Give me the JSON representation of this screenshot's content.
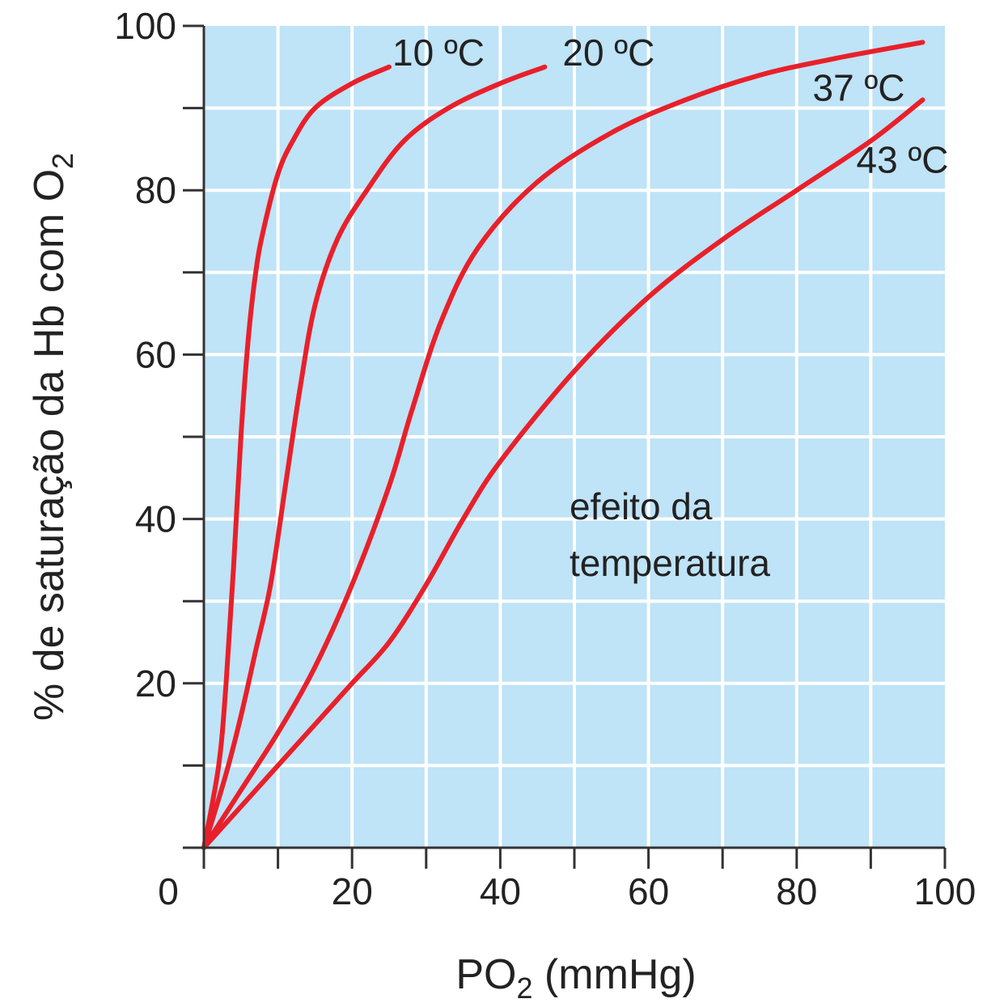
{
  "chart_data": {
    "type": "line",
    "title": "",
    "xlabel": {
      "main": "PO",
      "sub": "2",
      "rest": " (mmHg)"
    },
    "ylabel": {
      "main": "% de saturação da Hb com O",
      "sub": "2"
    },
    "xlim": [
      0,
      100
    ],
    "ylim": [
      0,
      100
    ],
    "x_tick_labels": [
      "0",
      "20",
      "40",
      "60",
      "80",
      "100"
    ],
    "y_tick_labels": [
      "0",
      "20",
      "40",
      "60",
      "80",
      "100"
    ],
    "grid": true,
    "annotation": [
      "efeito da",
      "temperatura"
    ],
    "series": [
      {
        "name": "10 ºC",
        "x": [
          0,
          2,
          3,
          4,
          5,
          6,
          7,
          8,
          10,
          12,
          15,
          20,
          25
        ],
        "y": [
          0,
          10,
          20,
          34,
          50,
          62,
          70,
          75,
          82,
          86,
          90,
          93,
          95
        ]
      },
      {
        "name": "20 ºC",
        "x": [
          0,
          3,
          5,
          7,
          9,
          11,
          13,
          15,
          18,
          22,
          27,
          33,
          40,
          46
        ],
        "y": [
          0,
          9,
          16,
          24,
          32,
          44,
          56,
          66,
          74,
          80,
          86,
          90,
          93,
          95
        ]
      },
      {
        "name": "37 ºC",
        "x": [
          0,
          5,
          10,
          15,
          20,
          25,
          28,
          32,
          37,
          45,
          55,
          65,
          75,
          85,
          97
        ],
        "y": [
          0,
          7,
          14,
          22,
          32,
          44,
          53,
          64,
          73,
          81,
          87,
          91,
          94,
          96,
          98
        ]
      },
      {
        "name": "43 ºC",
        "x": [
          0,
          5,
          10,
          15,
          20,
          25,
          30,
          35,
          40,
          50,
          60,
          70,
          80,
          90,
          97
        ],
        "y": [
          0,
          5,
          10,
          15,
          20,
          25,
          32,
          40,
          47,
          58,
          67,
          74,
          80,
          86,
          91
        ]
      }
    ],
    "colors": {
      "plot_background": "#bfe3f7",
      "grid": "#ffffff",
      "curve": "#e8202a",
      "axis": "#333333"
    }
  }
}
